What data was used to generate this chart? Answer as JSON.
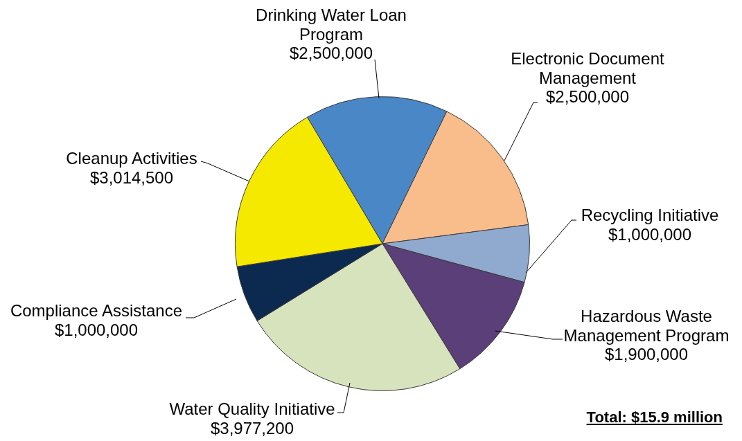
{
  "chart_data": {
    "type": "pie",
    "categories": [
      "Drinking Water Loan Program",
      "Electronic Document Management",
      "Recycling Initiative",
      "Hazardous Waste Management Program",
      "Water Quality Initiative",
      "Compliance Assistance",
      "Cleanup Activities"
    ],
    "values": [
      2500000,
      2500000,
      1000000,
      1900000,
      3977200,
      1000000,
      3014500
    ],
    "colors": [
      "#4a87c7",
      "#f9bd8b",
      "#8fa9cf",
      "#5a3f79",
      "#d7e3bd",
      "#0c2a50",
      "#f5e900"
    ],
    "value_labels": [
      "$2,500,000",
      "$2,500,000",
      "$1,000,000",
      "$1,900,000",
      "$3,977,200",
      "$1,000,000",
      "$3,014,500"
    ],
    "annotations": [
      "Total:  $15.9 million"
    ],
    "legend": false
  }
}
